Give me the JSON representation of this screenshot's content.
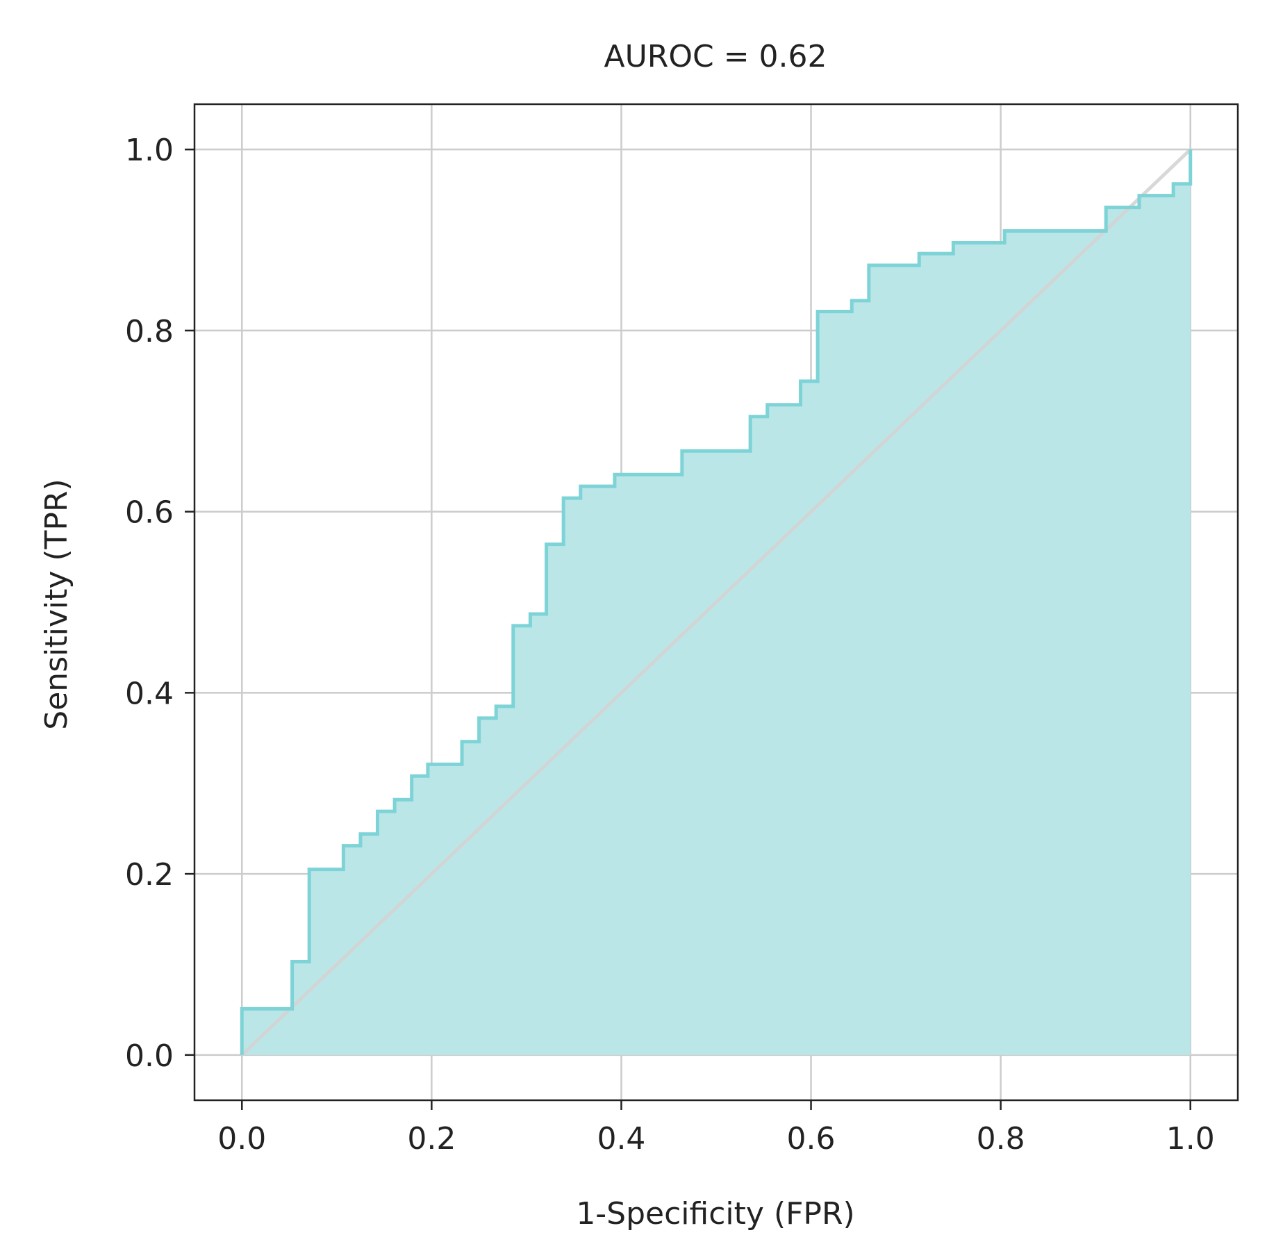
{
  "chart_data": {
    "type": "line",
    "title": "AUROC = 0.62",
    "xlabel": "1-Specificity (FPR)",
    "ylabel": "Sensitivity (TPR)",
    "xlim": [
      -0.05,
      1.05
    ],
    "ylim": [
      -0.05,
      1.05
    ],
    "xticks": [
      0.0,
      0.2,
      0.4,
      0.6,
      0.8,
      1.0
    ],
    "yticks": [
      0.0,
      0.2,
      0.4,
      0.6,
      0.8,
      1.0
    ],
    "xtick_labels": [
      "0.0",
      "0.2",
      "0.4",
      "0.6",
      "0.8",
      "1.0"
    ],
    "ytick_labels": [
      "0.0",
      "0.2",
      "0.4",
      "0.6",
      "0.8",
      "1.0"
    ],
    "grid": true,
    "fill_under_curve": true,
    "diagonal_reference": {
      "x": [
        0,
        1
      ],
      "y": [
        0,
        1
      ]
    },
    "colors": {
      "curve": "#7dd3d6",
      "fill": "#bbe6e8",
      "diagonal": "#d4d4d4",
      "grid": "#cccccc",
      "axes": "#222222"
    },
    "series": [
      {
        "x": [
          0.0,
          0.0,
          0.053,
          0.053,
          0.071,
          0.071,
          0.107,
          0.107,
          0.125,
          0.125,
          0.143,
          0.143,
          0.161,
          0.161,
          0.179,
          0.179,
          0.196,
          0.196,
          0.232,
          0.232,
          0.25,
          0.25,
          0.268,
          0.268,
          0.286,
          0.286,
          0.304,
          0.304,
          0.321,
          0.321,
          0.339,
          0.339,
          0.357,
          0.357,
          0.393,
          0.393,
          0.464,
          0.464,
          0.536,
          0.536,
          0.554,
          0.554,
          0.589,
          0.589,
          0.607,
          0.607,
          0.643,
          0.643,
          0.661,
          0.661,
          0.714,
          0.714,
          0.75,
          0.75,
          0.804,
          0.804,
          0.911,
          0.911,
          0.946,
          0.946,
          0.982,
          0.982,
          1.0,
          1.0
        ],
        "y": [
          0.0,
          0.051,
          0.051,
          0.103,
          0.103,
          0.205,
          0.205,
          0.231,
          0.231,
          0.244,
          0.244,
          0.269,
          0.269,
          0.282,
          0.282,
          0.308,
          0.308,
          0.321,
          0.321,
          0.346,
          0.346,
          0.372,
          0.372,
          0.385,
          0.385,
          0.474,
          0.474,
          0.487,
          0.487,
          0.564,
          0.564,
          0.615,
          0.615,
          0.628,
          0.628,
          0.641,
          0.641,
          0.667,
          0.667,
          0.705,
          0.705,
          0.718,
          0.718,
          0.744,
          0.744,
          0.821,
          0.821,
          0.833,
          0.833,
          0.872,
          0.872,
          0.885,
          0.885,
          0.897,
          0.897,
          0.91,
          0.91,
          0.936,
          0.936,
          0.949,
          0.949,
          0.962,
          0.962,
          1.0
        ]
      }
    ]
  }
}
